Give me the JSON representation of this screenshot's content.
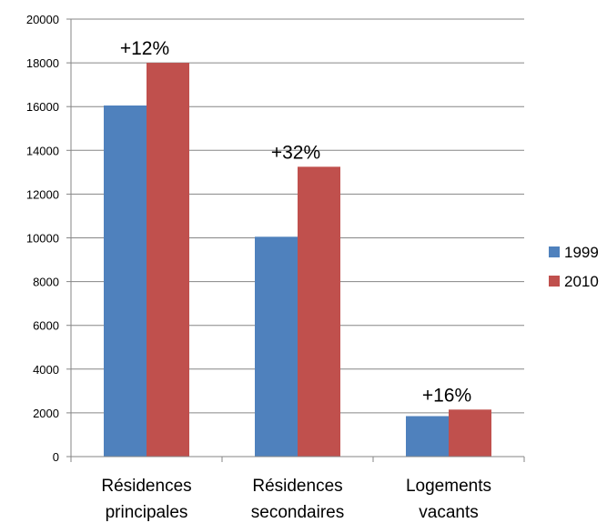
{
  "chart_data": {
    "type": "bar",
    "categories": [
      [
        "Résidences",
        "principales"
      ],
      [
        "Résidences",
        "secondaires"
      ],
      [
        "Logements",
        "vacants"
      ]
    ],
    "series": [
      {
        "name": "1999",
        "color": "#4f81bd",
        "values": [
          16050,
          10050,
          1850
        ]
      },
      {
        "name": "2010",
        "color": "#c0504d",
        "values": [
          18000,
          13250,
          2150
        ]
      }
    ],
    "annotations": [
      "+12%",
      "+32%",
      "+16%"
    ],
    "ylim": [
      0,
      20000
    ],
    "yticks": [
      0,
      2000,
      4000,
      6000,
      8000,
      10000,
      12000,
      14000,
      16000,
      18000,
      20000
    ],
    "grid": true,
    "legend_position": "right"
  }
}
